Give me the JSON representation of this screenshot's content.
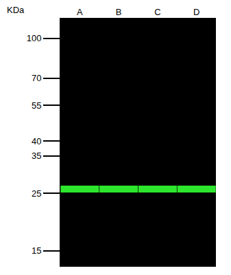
{
  "chart_data": {
    "type": "scatter",
    "ylabel": "KDa",
    "categories": [
      "A",
      "B",
      "C",
      "D"
    ],
    "values": [
      26,
      26,
      26,
      26
    ],
    "color": "#2ee62e",
    "ylim": [
      13,
      120
    ],
    "yticks": [
      15,
      25,
      35,
      40,
      55,
      70,
      100
    ],
    "log": "y",
    "grid": false,
    "marker": "band"
  }
}
